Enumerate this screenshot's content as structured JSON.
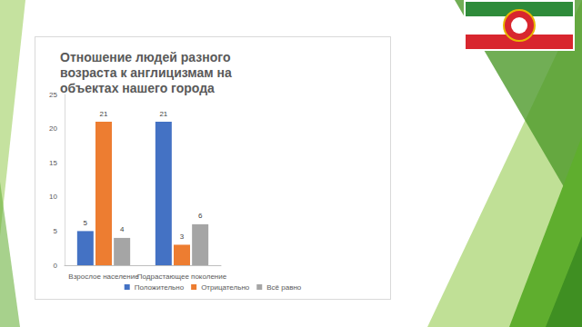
{
  "chart_data": {
    "type": "bar",
    "title": "Отношение людей разного возраста к англицизмам на объектах нашего города",
    "categories": [
      "Взрослое население",
      "Подрастающее поколение"
    ],
    "series": [
      {
        "name": "Положительно",
        "color": "#4472c4",
        "values": [
          5,
          21
        ]
      },
      {
        "name": "Отрицательно",
        "color": "#ed7d31",
        "values": [
          21,
          3
        ]
      },
      {
        "name": "Всё равно",
        "color": "#a5a5a5",
        "values": [
          4,
          6
        ]
      }
    ],
    "ylim": [
      0,
      25
    ],
    "yticks": [
      0,
      5,
      10,
      15,
      20,
      25
    ],
    "grid": false,
    "legend": "bottom",
    "data_labels": true
  }
}
